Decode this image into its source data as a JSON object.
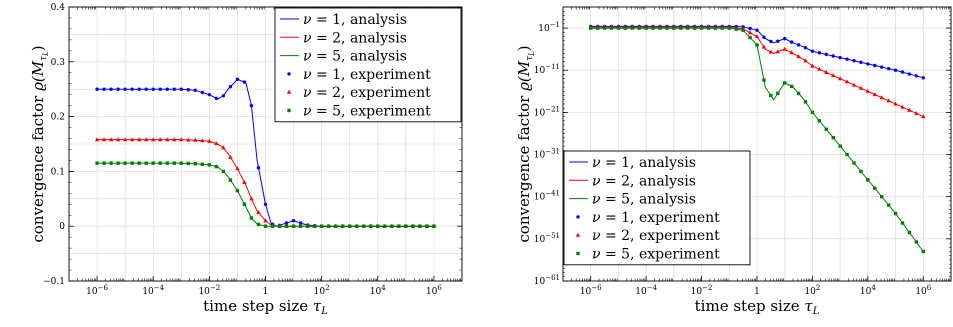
{
  "chart_data": [
    {
      "type": "line",
      "xlabel": "time step size τ_L",
      "ylabel": "convergence factor ϱ(M_τL)",
      "xscale": "log",
      "xlim_exp": [
        -7,
        7
      ],
      "ylim": [
        -0.1,
        0.4
      ],
      "grid": true,
      "legend_position": "top-right",
      "x_tick_labels": [
        "10^-6",
        "10^-4",
        "10^-2",
        "1",
        "10^2",
        "10^4",
        "10^6"
      ],
      "y_tick_labels": [
        "−0.1",
        "0",
        "0.1",
        "0.2",
        "0.3",
        "0.4"
      ],
      "y_ticks": [
        -0.1,
        0,
        0.1,
        0.2,
        0.3,
        0.4
      ],
      "x_log10": [
        -6,
        -5,
        -4,
        -3,
        -2.5,
        -2,
        -1.7,
        -1.5,
        -1.3,
        -1,
        -0.7,
        -0.5,
        -0.3,
        0,
        0.2,
        0.4,
        0.7,
        1,
        1.3,
        1.5,
        2,
        3,
        4,
        5,
        6
      ],
      "series": [
        {
          "name": "ν = 1, analysis",
          "color": "#0000ff",
          "style": "line",
          "values": [
            0.25,
            0.25,
            0.25,
            0.25,
            0.248,
            0.24,
            0.232,
            0.238,
            0.252,
            0.268,
            0.262,
            0.22,
            0.12,
            0.04,
            0.005,
            0.0,
            0.005,
            0.01,
            0.005,
            0.002,
            0.0,
            0.0,
            0.0,
            0.0,
            0.0
          ]
        },
        {
          "name": "ν = 2, analysis",
          "color": "#ff0000",
          "style": "line",
          "values": [
            0.158,
            0.158,
            0.158,
            0.158,
            0.157,
            0.155,
            0.15,
            0.143,
            0.13,
            0.105,
            0.075,
            0.05,
            0.028,
            0.01,
            0.002,
            0.0,
            0.0,
            0.0,
            0.0,
            0.0,
            0.0,
            0.0,
            0.0,
            0.0,
            0.0
          ]
        },
        {
          "name": "ν = 5, analysis",
          "color": "#008000",
          "style": "line",
          "values": [
            0.115,
            0.115,
            0.115,
            0.115,
            0.114,
            0.112,
            0.108,
            0.1,
            0.088,
            0.065,
            0.035,
            0.015,
            0.004,
            0.0,
            0.0,
            0.0,
            0.0,
            0.0,
            0.0,
            0.0,
            0.0,
            0.0,
            0.0,
            0.0,
            0.0
          ]
        },
        {
          "name": "ν = 1, experiment",
          "color": "#0000ff",
          "style": "circle",
          "values": [
            0.25,
            0.25,
            0.25,
            0.25,
            0.248,
            0.24,
            0.232,
            0.238,
            0.252,
            0.268,
            0.262,
            0.22,
            0.12,
            0.04,
            0.005,
            0.0,
            0.005,
            0.01,
            0.005,
            0.002,
            0.0,
            0.0,
            0.0,
            0.0,
            0.0
          ]
        },
        {
          "name": "ν = 2, experiment",
          "color": "#ff0000",
          "style": "triangle",
          "values": [
            0.158,
            0.158,
            0.158,
            0.158,
            0.157,
            0.155,
            0.15,
            0.143,
            0.13,
            0.105,
            0.075,
            0.05,
            0.028,
            0.01,
            0.002,
            0.0,
            0.0,
            0.0,
            0.0,
            0.0,
            0.0,
            0.0,
            0.0,
            0.0,
            0.0
          ]
        },
        {
          "name": "ν = 5, experiment",
          "color": "#008000",
          "style": "square",
          "values": [
            0.115,
            0.115,
            0.115,
            0.115,
            0.114,
            0.112,
            0.108,
            0.1,
            0.088,
            0.065,
            0.035,
            0.015,
            0.004,
            0.0,
            0.0,
            0.0,
            0.0,
            0.0,
            0.0,
            0.0,
            0.0,
            0.0,
            0.0,
            0.0,
            0.0
          ]
        }
      ]
    },
    {
      "type": "line",
      "xlabel": "time step size τ_L",
      "ylabel": "convergence factor ϱ(M_τL)",
      "xscale": "log",
      "yscale": "log",
      "xlim_exp": [
        -7,
        7
      ],
      "ylim_exp": [
        -61,
        4
      ],
      "grid": true,
      "legend_position": "bottom-left",
      "x_tick_labels": [
        "10^-6",
        "10^-4",
        "10^-2",
        "1",
        "10^2",
        "10^4",
        "10^6"
      ],
      "y_tick_labels": [
        "10^-1",
        "10^-11",
        "10^-21",
        "10^-31",
        "10^-41",
        "10^-51",
        "10^-61"
      ],
      "y_ticks_exp": [
        -1,
        -11,
        -21,
        -31,
        -41,
        -51,
        -61
      ],
      "x_log10": [
        -6,
        -5,
        -4,
        -3,
        -2,
        -1,
        -0.5,
        0,
        0.3,
        0.6,
        1,
        1.3,
        1.7,
        2,
        3,
        4,
        5,
        6
      ],
      "series": [
        {
          "name": "ν = 1, analysis",
          "color": "#0000ff",
          "style": "line",
          "values_exp": [
            -0.6,
            -0.6,
            -0.6,
            -0.6,
            -0.6,
            -0.6,
            -0.7,
            -1.5,
            -3.5,
            -4.5,
            -3.5,
            -4.5,
            -5.5,
            -6.5,
            -8,
            -9.5,
            -11,
            -12.8
          ]
        },
        {
          "name": "ν = 2, analysis",
          "color": "#ff0000",
          "style": "line",
          "values_exp": [
            -0.8,
            -0.8,
            -0.8,
            -0.8,
            -0.8,
            -0.8,
            -1.2,
            -3,
            -6,
            -7,
            -6,
            -7,
            -8.5,
            -10,
            -13,
            -16,
            -19,
            -22
          ]
        },
        {
          "name": "ν = 5, analysis",
          "color": "#008000",
          "style": "line",
          "values_exp": [
            -1,
            -1,
            -1,
            -1,
            -1,
            -1,
            -1.5,
            -5,
            -15,
            -18,
            -14,
            -15,
            -18,
            -21,
            -29,
            -37,
            -45,
            -54
          ]
        },
        {
          "name": "ν = 1, experiment",
          "color": "#0000ff",
          "style": "circle",
          "values_exp": [
            -0.6,
            -0.6,
            -0.6,
            -0.6,
            -0.6,
            -0.6,
            -0.7,
            -1.5,
            -3.5,
            -4.5,
            -3.5,
            -4.5,
            -5.5,
            -6.5,
            -8,
            -9.5,
            -11,
            -12.8
          ]
        },
        {
          "name": "ν = 2, experiment",
          "color": "#ff0000",
          "style": "triangle",
          "values_exp": [
            -0.8,
            -0.8,
            -0.8,
            -0.8,
            -0.8,
            -0.8,
            -1.2,
            -3,
            -6,
            -7,
            -6,
            -7,
            -8.5,
            -10,
            -13,
            -16,
            -19,
            -22
          ]
        },
        {
          "name": "ν = 5, experiment",
          "color": "#008000",
          "style": "square",
          "values_exp": [
            -1,
            -1,
            -1,
            -1,
            -1,
            -1,
            -1.5,
            -5,
            -15,
            -18,
            -14,
            -15,
            -18,
            -21,
            -29,
            -37,
            -45,
            -54
          ]
        }
      ]
    }
  ]
}
